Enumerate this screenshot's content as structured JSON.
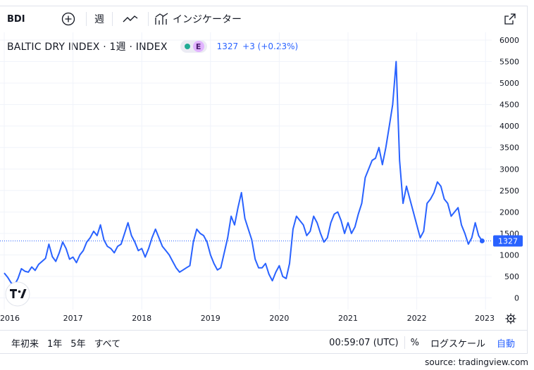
{
  "toolbar": {
    "symbol": "BDI",
    "interval": "週",
    "indicators": "インジケーター"
  },
  "legend": {
    "title": "BALTIC DRY INDEX · 1週 · INDEX",
    "exchange_badge": "E",
    "price": "1327",
    "change": "+3 (+0.23%)"
  },
  "icons": {
    "add": "plus-circle-icon",
    "chart_type": "line-chart-icon",
    "indicators": "indicators-icon",
    "fullscreen": "external-link-icon",
    "logo": "tradingview-logo-icon",
    "settings": "gear-icon"
  },
  "colors": {
    "line": "#2962ff",
    "grid": "#f0f3fa",
    "text": "#131722",
    "accent": "#2962ff"
  },
  "chart_data": {
    "type": "line",
    "y_ticks": [
      "6000",
      "5500",
      "5000",
      "4500",
      "4000",
      "3500",
      "3000",
      "2500",
      "2000",
      "1500",
      "1000",
      "500",
      "0"
    ],
    "x_ticks": [
      "2016",
      "2017",
      "2018",
      "2019",
      "2020",
      "2021",
      "2022",
      "2023"
    ],
    "ylim": [
      0,
      6000
    ],
    "last_value": "1327",
    "grid": true,
    "series": [
      {
        "x": [
          2016.0,
          2016.05,
          2016.1,
          2016.15,
          2016.2,
          2016.25,
          2016.3,
          2016.35,
          2016.4,
          2016.45,
          2016.5,
          2016.55,
          2016.6,
          2016.65,
          2016.7,
          2016.75,
          2016.8,
          2016.85,
          2016.9,
          2016.95,
          2017.0,
          2017.05,
          2017.1,
          2017.15,
          2017.2,
          2017.25,
          2017.3,
          2017.35,
          2017.4,
          2017.45,
          2017.5,
          2017.55,
          2017.6,
          2017.65,
          2017.7,
          2017.75,
          2017.8,
          2017.85,
          2017.9,
          2017.95,
          2018.0,
          2018.05,
          2018.1,
          2018.15,
          2018.2,
          2018.25,
          2018.3,
          2018.35,
          2018.4,
          2018.45,
          2018.5,
          2018.55,
          2018.6,
          2018.65,
          2018.7,
          2018.75,
          2018.8,
          2018.85,
          2018.9,
          2018.95,
          2019.0,
          2019.05,
          2019.1,
          2019.15,
          2019.2,
          2019.25,
          2019.3,
          2019.35,
          2019.4,
          2019.45,
          2019.5,
          2019.55,
          2019.6,
          2019.65,
          2019.7,
          2019.75,
          2019.8,
          2019.85,
          2019.9,
          2019.95,
          2020.0,
          2020.05,
          2020.1,
          2020.15,
          2020.2,
          2020.25,
          2020.3,
          2020.35,
          2020.4,
          2020.45,
          2020.5,
          2020.55,
          2020.6,
          2020.65,
          2020.7,
          2020.75,
          2020.8,
          2020.85,
          2020.9,
          2020.95,
          2021.0,
          2021.05,
          2021.1,
          2021.15,
          2021.2,
          2021.25,
          2021.3,
          2021.35,
          2021.4,
          2021.45,
          2021.5,
          2021.55,
          2021.6,
          2021.65,
          2021.7,
          2021.75,
          2021.8,
          2021.85,
          2021.9,
          2021.95,
          2022.0,
          2022.05,
          2022.1,
          2022.15,
          2022.2,
          2022.25,
          2022.3,
          2022.35,
          2022.4,
          2022.45,
          2022.5,
          2022.55,
          2022.6,
          2022.65,
          2022.7,
          2022.75,
          2022.8,
          2022.85,
          2022.9,
          2022.95
        ],
        "values": [
          580,
          480,
          350,
          300,
          450,
          680,
          620,
          600,
          720,
          640,
          780,
          850,
          920,
          1250,
          960,
          850,
          1050,
          1300,
          1150,
          900,
          950,
          820,
          1000,
          1100,
          1300,
          1400,
          1550,
          1450,
          1700,
          1350,
          1200,
          1150,
          1050,
          1200,
          1250,
          1500,
          1750,
          1450,
          1300,
          1100,
          1150,
          950,
          1150,
          1400,
          1600,
          1400,
          1200,
          1100,
          1000,
          850,
          700,
          600,
          650,
          700,
          750,
          1300,
          1600,
          1500,
          1450,
          1300,
          1000,
          800,
          650,
          700,
          1050,
          1400,
          1900,
          1700,
          2100,
          2450,
          1850,
          1600,
          1350,
          900,
          700,
          700,
          800,
          550,
          400,
          600,
          750,
          500,
          450,
          800,
          1600,
          1900,
          1800,
          1700,
          1450,
          1550,
          1900,
          1750,
          1500,
          1300,
          1400,
          1750,
          1950,
          2000,
          1800,
          1500,
          1750,
          1500,
          1650,
          1950,
          2200,
          2800,
          3000,
          3200,
          3250,
          3500,
          3100,
          3500,
          4000,
          4500,
          5500,
          3200,
          2200,
          2600,
          2300,
          2000,
          1700,
          1400,
          1550,
          2200,
          2300,
          2450,
          2700,
          2600,
          2300,
          2200,
          1900,
          2000,
          2100,
          1700,
          1500,
          1250,
          1400,
          1750,
          1450,
          1327
        ]
      }
    ]
  },
  "bottom": {
    "ranges": [
      "年初来",
      "1年",
      "5年",
      "すべて"
    ],
    "clock": "00:59:07 (UTC)",
    "percent": "%",
    "log_scale": "ログスケール",
    "auto": "自動"
  },
  "source": "source: tradingview.com"
}
